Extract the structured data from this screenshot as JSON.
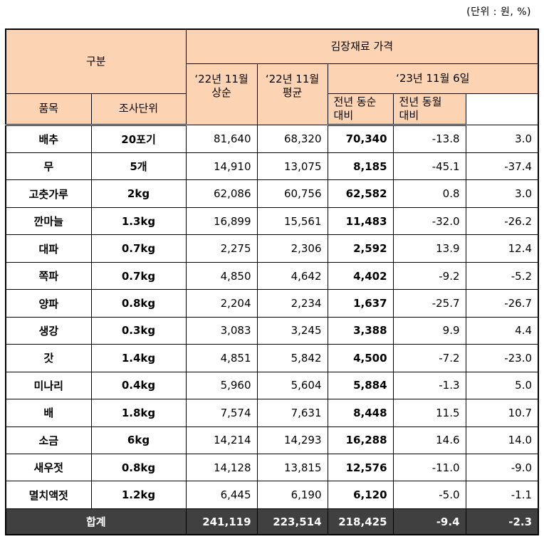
{
  "unit_note": "(단위 : 원, %)",
  "header": {
    "category": "구분",
    "group_title": "김장재료 가격",
    "col_prev_early": "‘22년 11월\n상순",
    "col_prev_avg": "‘22년 11월\n평균",
    "col_current": "‘23년 11월 6일",
    "col_item": "품목",
    "col_unit": "조사단위",
    "col_yoy_period": "전년 동순\n대비",
    "col_yoy_month": "전년 동월\n대비"
  },
  "rows": [
    {
      "item": "배추",
      "unit": "20포기",
      "prev_early": "81,640",
      "prev_avg": "68,320",
      "current": "70,340",
      "yoy_period": "-13.8",
      "yoy_month": "3.0"
    },
    {
      "item": "무",
      "unit": "5개",
      "prev_early": "14,910",
      "prev_avg": "13,075",
      "current": "8,185",
      "yoy_period": "-45.1",
      "yoy_month": "-37.4"
    },
    {
      "item": "고춧가루",
      "unit": "2kg",
      "prev_early": "62,086",
      "prev_avg": "60,756",
      "current": "62,582",
      "yoy_period": "0.8",
      "yoy_month": "3.0"
    },
    {
      "item": "깐마늘",
      "unit": "1.3kg",
      "prev_early": "16,899",
      "prev_avg": "15,561",
      "current": "11,483",
      "yoy_period": "-32.0",
      "yoy_month": "-26.2"
    },
    {
      "item": "대파",
      "unit": "0.7kg",
      "prev_early": "2,275",
      "prev_avg": "2,306",
      "current": "2,592",
      "yoy_period": "13.9",
      "yoy_month": "12.4"
    },
    {
      "item": "쪽파",
      "unit": "0.7kg",
      "prev_early": "4,850",
      "prev_avg": "4,642",
      "current": "4,402",
      "yoy_period": "-9.2",
      "yoy_month": "-5.2"
    },
    {
      "item": "양파",
      "unit": "0.8kg",
      "prev_early": "2,204",
      "prev_avg": "2,234",
      "current": "1,637",
      "yoy_period": "-25.7",
      "yoy_month": "-26.7"
    },
    {
      "item": "생강",
      "unit": "0.3kg",
      "prev_early": "3,083",
      "prev_avg": "3,245",
      "current": "3,388",
      "yoy_period": "9.9",
      "yoy_month": "4.4"
    },
    {
      "item": "갓",
      "unit": "1.4kg",
      "prev_early": "4,851",
      "prev_avg": "5,842",
      "current": "4,500",
      "yoy_period": "-7.2",
      "yoy_month": "-23.0"
    },
    {
      "item": "미나리",
      "unit": "0.4kg",
      "prev_early": "5,960",
      "prev_avg": "5,604",
      "current": "5,884",
      "yoy_period": "-1.3",
      "yoy_month": "5.0"
    },
    {
      "item": "배",
      "unit": "1.8kg",
      "prev_early": "7,574",
      "prev_avg": "7,631",
      "current": "8,448",
      "yoy_period": "11.5",
      "yoy_month": "10.7"
    },
    {
      "item": "소금",
      "unit": "6kg",
      "prev_early": "14,214",
      "prev_avg": "14,293",
      "current": "16,288",
      "yoy_period": "14.6",
      "yoy_month": "14.0"
    },
    {
      "item": "새우젓",
      "unit": "0.8kg",
      "prev_early": "14,128",
      "prev_avg": "13,815",
      "current": "12,576",
      "yoy_period": "-11.0",
      "yoy_month": "-9.0"
    },
    {
      "item": "멸치액젓",
      "unit": "1.2kg",
      "prev_early": "6,445",
      "prev_avg": "6,190",
      "current": "6,120",
      "yoy_period": "-5.0",
      "yoy_month": "-1.1"
    }
  ],
  "total": {
    "label": "합계",
    "prev_early": "241,119",
    "prev_avg": "223,514",
    "current": "218,425",
    "yoy_period": "-9.4",
    "yoy_month": "-2.3"
  },
  "colors": {
    "header_bg": "#fcd4b4",
    "total_bg": "#404040",
    "total_text": "#ffffff"
  }
}
